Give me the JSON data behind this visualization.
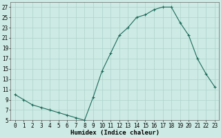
{
  "x": [
    0,
    1,
    2,
    3,
    4,
    5,
    6,
    7,
    8,
    9,
    10,
    11,
    12,
    13,
    14,
    15,
    16,
    17,
    18,
    19,
    20,
    21,
    22,
    23
  ],
  "y": [
    10,
    9,
    8,
    7.5,
    7,
    6.5,
    6,
    5.5,
    5,
    9.5,
    14.5,
    18,
    21.5,
    23,
    25,
    25.5,
    26.5,
    27,
    27,
    24,
    21.5,
    17,
    14,
    11.5
  ],
  "line_color": "#1a6b5a",
  "marker": "+",
  "marker_size": 3,
  "marker_lw": 0.8,
  "line_width": 0.8,
  "bg_color": "#ceeae4",
  "grid_color": "#aad4cc",
  "xlabel": "Humidex (Indice chaleur)",
  "xlim": [
    -0.5,
    23.5
  ],
  "ylim": [
    5,
    28
  ],
  "xticks": [
    0,
    1,
    2,
    3,
    4,
    5,
    6,
    7,
    8,
    9,
    10,
    11,
    12,
    13,
    14,
    15,
    16,
    17,
    18,
    19,
    20,
    21,
    22,
    23
  ],
  "yticks": [
    5,
    7,
    9,
    11,
    13,
    15,
    17,
    19,
    21,
    23,
    25,
    27
  ],
  "xlabel_fontsize": 6.5,
  "tick_fontsize": 5.5
}
